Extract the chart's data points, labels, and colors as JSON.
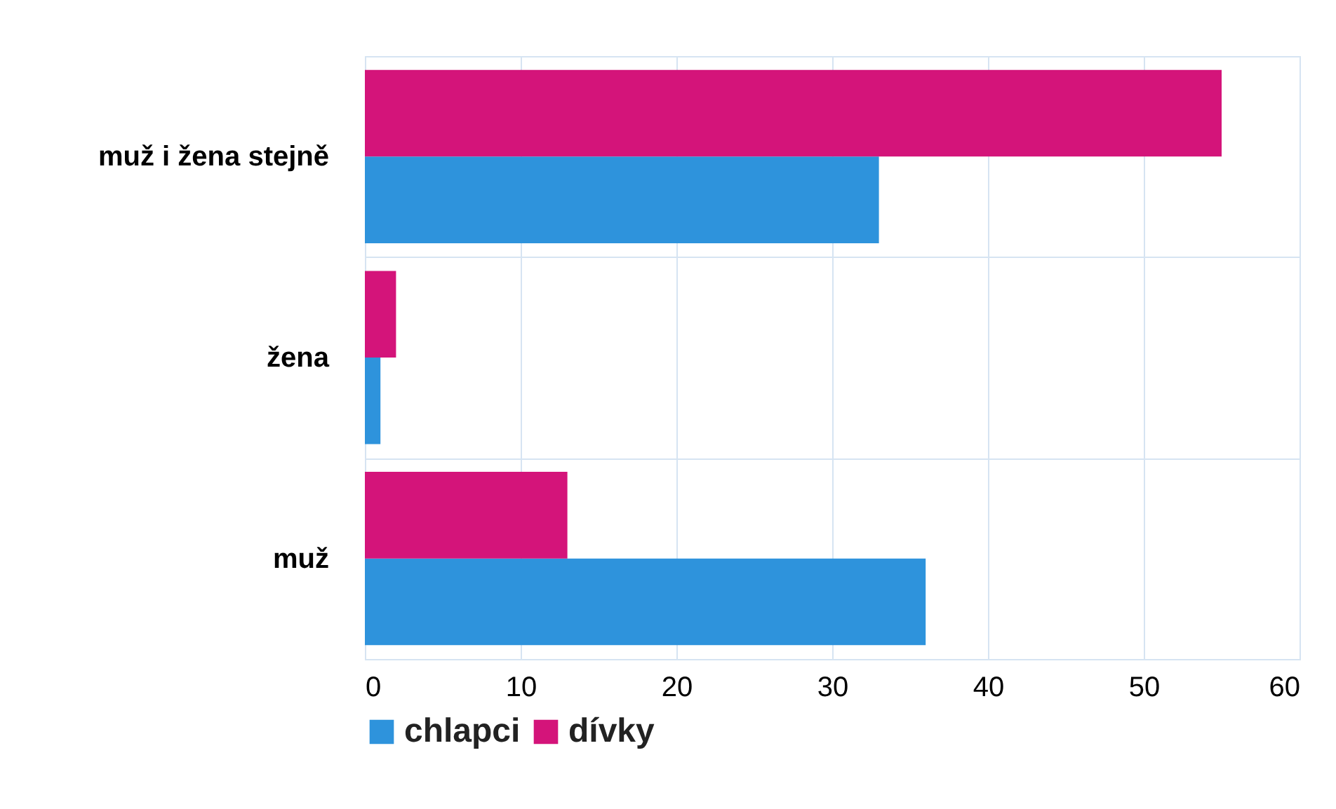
{
  "chart_data": {
    "type": "bar",
    "orientation": "horizontal",
    "categories": [
      "muž i žena stejně",
      "žena",
      "muž"
    ],
    "series": [
      {
        "name": "chlapci",
        "color": "#2e93dc",
        "values": [
          33,
          1,
          36
        ]
      },
      {
        "name": "dívky",
        "color": "#d4147a",
        "values": [
          55,
          2,
          13
        ]
      }
    ],
    "xlim": [
      0,
      60
    ],
    "xticks": [
      0,
      10,
      20,
      30,
      40,
      50,
      60
    ],
    "grid": true,
    "legend": "bottom"
  }
}
